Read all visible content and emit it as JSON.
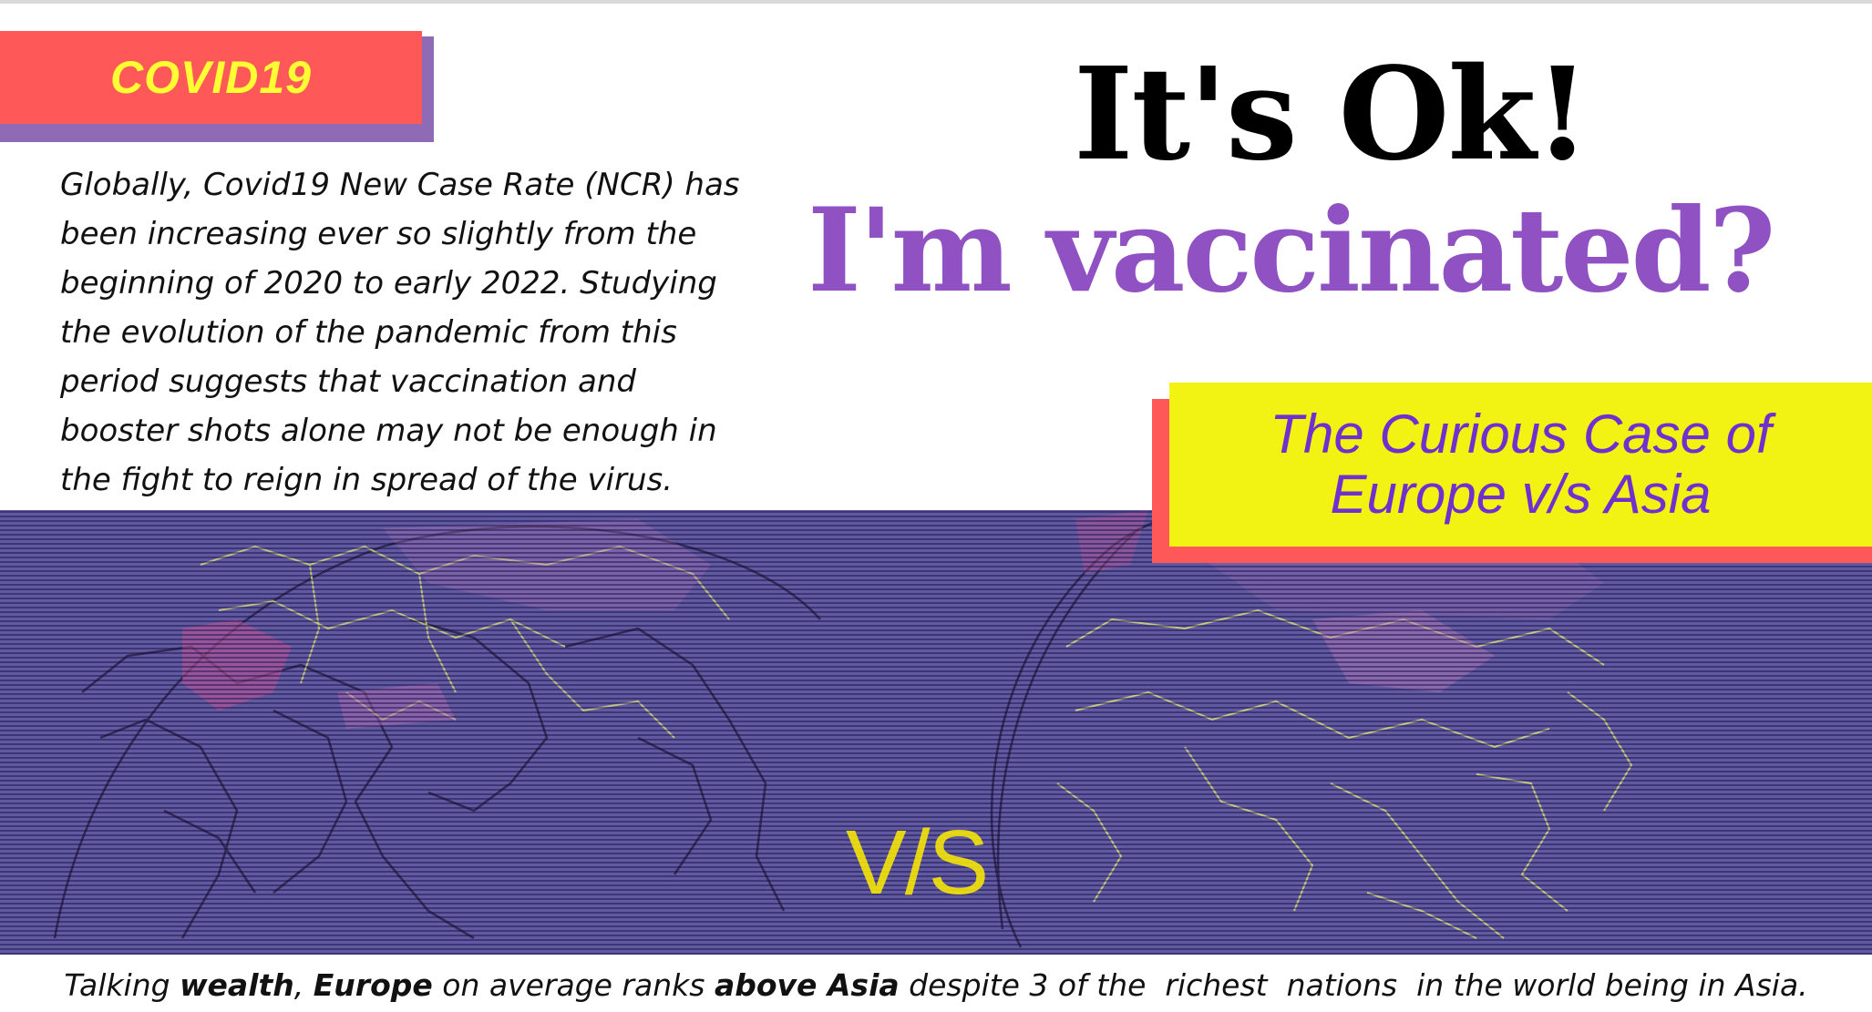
{
  "tag": {
    "label": "COVID19"
  },
  "intro": {
    "lines": [
      "Globally, Covid19 New Case Rate (NCR) has",
      "been increasing ever so slightly from the",
      "beginning of 2020 to early 2022. Studying",
      "the evolution of the pandemic from this",
      "period suggests that vaccination and",
      "booster shots alone may not be enough in",
      "the fight to reign in spread of the virus."
    ]
  },
  "title": {
    "line1": "It's Ok!",
    "line2": "I'm vaccinated?"
  },
  "subtitle": {
    "line1": "The Curious Case of",
    "line2": "Europe v/s Asia"
  },
  "map": {
    "vs_label": "V/S"
  },
  "footer": {
    "t1": "Talking ",
    "t2": "wealth",
    "t3": ", ",
    "t4": "Europe",
    "t5": " on average ranks ",
    "t6": "above Asia",
    "t7": " despite 3 of the  richest  nations  in the world being in Asia."
  },
  "colors": {
    "tag_bg": "#ff5858",
    "tag_shadow": "#8e6bb4",
    "tag_text": "#ffff33",
    "title_accent": "#9052c2",
    "subtitle_bg": "#f2f213",
    "subtitle_text": "#7030cf",
    "map_bg": "#5a5298"
  }
}
